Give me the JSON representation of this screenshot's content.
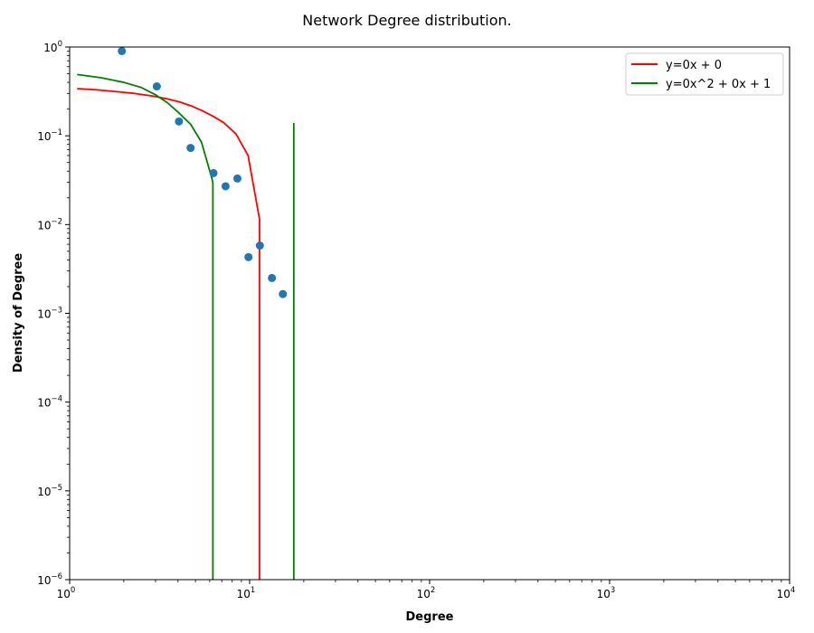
{
  "chart_data": {
    "type": "scatter",
    "title": "Network Degree distribution.",
    "xlabel": "Degree",
    "ylabel": "Density of Degree",
    "xscale": "log",
    "yscale": "log",
    "xlim": [
      1,
      10000
    ],
    "ylim": [
      1e-06,
      1
    ],
    "x_ticks": [
      {
        "base": "10",
        "exp": "0",
        "value": 1
      },
      {
        "base": "10",
        "exp": "1",
        "value": 10
      },
      {
        "base": "10",
        "exp": "2",
        "value": 100
      },
      {
        "base": "10",
        "exp": "3",
        "value": 1000
      },
      {
        "base": "10",
        "exp": "4",
        "value": 10000
      }
    ],
    "y_ticks": [
      {
        "base": "10",
        "exp": "0",
        "value": 1
      },
      {
        "base": "10",
        "exp": "−1",
        "value": 0.1
      },
      {
        "base": "10",
        "exp": "−2",
        "value": 0.01
      },
      {
        "base": "10",
        "exp": "−3",
        "value": 0.001
      },
      {
        "base": "10",
        "exp": "−4",
        "value": 0.0001
      },
      {
        "base": "10",
        "exp": "−5",
        "value": 1e-05
      },
      {
        "base": "10",
        "exp": "−6",
        "value": 1e-06
      }
    ],
    "grid": false,
    "legend": "top-right",
    "points": {
      "color": "#1f77b4",
      "x": [
        1.95,
        3.05,
        4.05,
        4.7,
        6.3,
        7.35,
        8.55,
        9.85,
        11.4,
        13.3,
        15.3
      ],
      "y": [
        0.9,
        0.36,
        0.145,
        0.073,
        0.038,
        0.027,
        0.033,
        0.0043,
        0.0058,
        0.0025,
        0.00165
      ]
    },
    "series": [
      {
        "name": "y=0x + 0",
        "color": "#ff0000",
        "x": [
          1.1,
          1.4,
          1.8,
          2.3,
          2.9,
          3.5,
          4.1,
          4.8,
          5.5,
          6.3,
          7.2,
          8.4,
          9.8,
          11.35,
          11.35
        ],
        "y": [
          0.34,
          0.33,
          0.315,
          0.3,
          0.28,
          0.26,
          0.24,
          0.215,
          0.19,
          0.165,
          0.14,
          0.105,
          0.06,
          0.0115,
          1e-06
        ]
      },
      {
        "name": "y=0x^2 + 0x + 1",
        "color": "#008000",
        "x": [
          1.1,
          1.5,
          2.0,
          2.5,
          3.0,
          3.5,
          4.0,
          4.7,
          5.4,
          6.2,
          6.25,
          6.25
        ],
        "y": [
          0.49,
          0.45,
          0.4,
          0.35,
          0.29,
          0.235,
          0.185,
          0.135,
          0.085,
          0.032,
          0.029,
          1e-06
        ]
      },
      {
        "name": "",
        "color": "#008000",
        "x": [
          17.6,
          17.6
        ],
        "y": [
          1e-06,
          0.14
        ]
      }
    ]
  }
}
